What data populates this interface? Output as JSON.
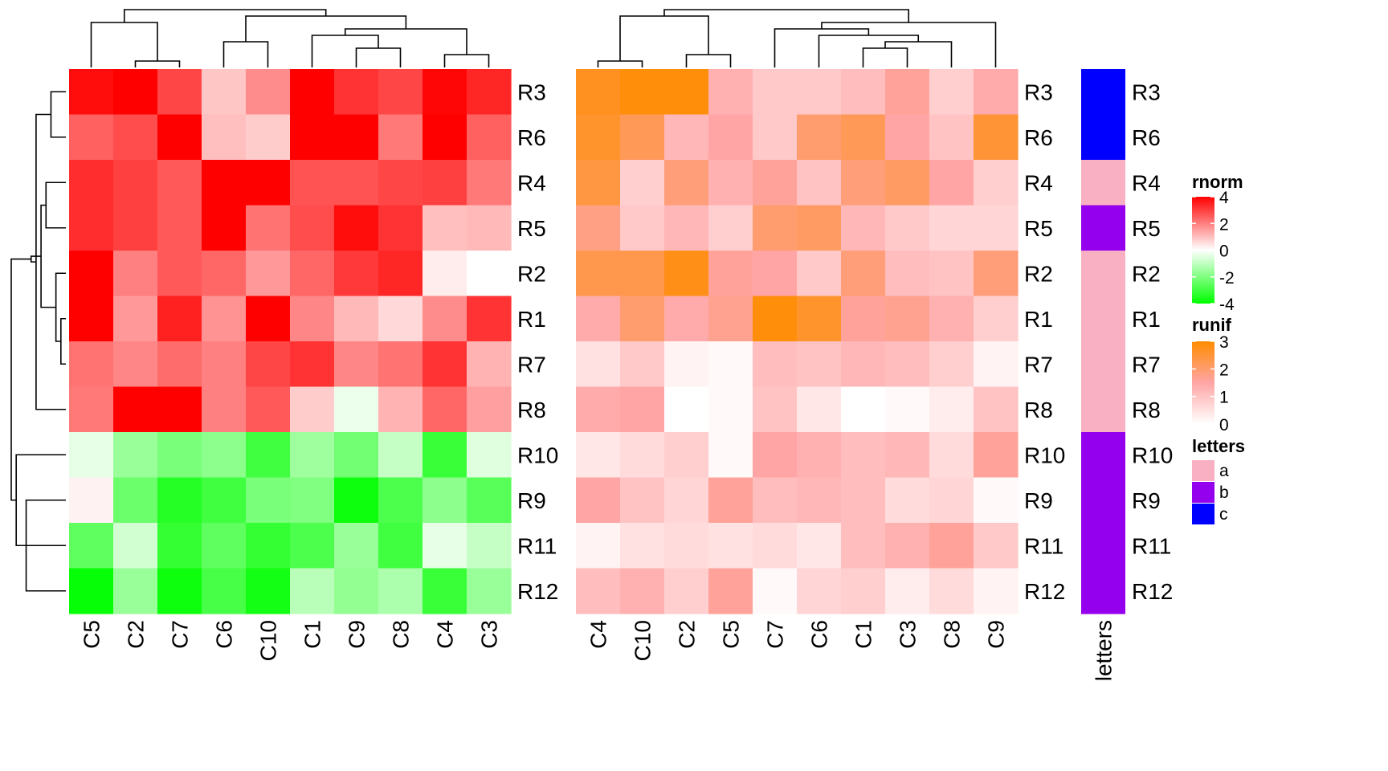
{
  "chart_data": [
    {
      "type": "heatmap",
      "name": "rnorm",
      "palette": [
        "#00ff00",
        "#ffffff",
        "#ff0000"
      ],
      "scale_range": [
        -4,
        4
      ],
      "rows": [
        "R3",
        "R6",
        "R4",
        "R5",
        "R2",
        "R1",
        "R7",
        "R8",
        "R10",
        "R9",
        "R11",
        "R12"
      ],
      "columns": [
        "C5",
        "C2",
        "C7",
        "C6",
        "C10",
        "C1",
        "C9",
        "C8",
        "C4",
        "C3"
      ],
      "values": [
        [
          3.8,
          4.0,
          2.9,
          0.9,
          1.8,
          4.0,
          3.2,
          2.9,
          3.9,
          3.4
        ],
        [
          2.5,
          2.8,
          4.0,
          1.0,
          0.8,
          4.0,
          4.0,
          2.1,
          4.0,
          2.5
        ],
        [
          3.3,
          3.0,
          2.6,
          4.0,
          4.0,
          2.7,
          2.7,
          2.9,
          3.0,
          2.1
        ],
        [
          3.3,
          3.0,
          2.6,
          4.0,
          2.2,
          2.8,
          3.8,
          3.2,
          1.0,
          1.1
        ],
        [
          4.0,
          2.0,
          2.6,
          2.4,
          1.6,
          2.4,
          3.1,
          3.4,
          0.3,
          0.0
        ],
        [
          4.0,
          1.6,
          3.5,
          1.7,
          4.0,
          1.9,
          1.1,
          0.6,
          1.8,
          3.2
        ],
        [
          2.2,
          1.9,
          2.3,
          2.0,
          2.9,
          3.2,
          1.9,
          2.2,
          3.2,
          1.2
        ],
        [
          2.1,
          4.0,
          4.0,
          2.0,
          2.6,
          0.8,
          -0.3,
          1.2,
          2.4,
          1.5
        ],
        [
          -0.4,
          -1.6,
          -2.1,
          -1.8,
          -3.0,
          -1.5,
          -2.2,
          -0.9,
          -3.1,
          -0.5
        ],
        [
          0.2,
          -2.3,
          -3.4,
          -3.0,
          -2.1,
          -2.0,
          -3.8,
          -2.8,
          -1.8,
          -2.6
        ],
        [
          -2.5,
          -0.7,
          -3.2,
          -2.5,
          -3.2,
          -2.8,
          -1.6,
          -3.0,
          -0.4,
          -0.9
        ],
        [
          -3.9,
          -1.6,
          -3.8,
          -2.9,
          -3.7,
          -1.1,
          -1.7,
          -1.3,
          -3.1,
          -1.6
        ]
      ],
      "row_dendrogram": [
        [
          "R1",
          "R7",
          1
        ],
        [
          "R2",
          0,
          2
        ],
        [
          "R3",
          "R6",
          3
        ],
        [
          "R4",
          "R5",
          4
        ],
        [
          3,
          1,
          5
        ],
        [
          "R8",
          2,
          6
        ],
        [
          4,
          5,
          7
        ],
        [
          "R12",
          "R9",
          8
        ],
        [
          "R11",
          7,
          9
        ],
        [
          "R10",
          8,
          10
        ],
        [
          6,
          9,
          11
        ]
      ],
      "column_dendrogram": [
        [
          "C2",
          "C7",
          1
        ],
        [
          "C4",
          "C3",
          2
        ],
        [
          "C9",
          "C8",
          3
        ],
        [
          "C6",
          "C10",
          4
        ],
        [
          "C1",
          2,
          5
        ],
        [
          4,
          1,
          6
        ],
        [
          "C5",
          0,
          7
        ],
        [
          5,
          3,
          8
        ],
        [
          6,
          7,
          9
        ]
      ]
    },
    {
      "type": "heatmap",
      "name": "runif",
      "palette": [
        "#ffffff",
        "#ffa5a5",
        "#ff8c00"
      ],
      "scale_range": [
        0,
        3
      ],
      "rows": [
        "R3",
        "R6",
        "R4",
        "R5",
        "R2",
        "R1",
        "R7",
        "R8",
        "R10",
        "R9",
        "R11",
        "R12"
      ],
      "columns": [
        "C4",
        "C10",
        "C2",
        "C5",
        "C7",
        "C6",
        "C1",
        "C3",
        "C8",
        "C9"
      ],
      "values": [
        [
          2.7,
          2.9,
          2.9,
          1.3,
          0.9,
          0.9,
          1.1,
          1.6,
          0.8,
          1.4
        ],
        [
          2.6,
          2.2,
          1.2,
          1.5,
          0.9,
          2.0,
          2.2,
          1.5,
          1.0,
          2.5
        ],
        [
          2.4,
          0.8,
          1.9,
          1.3,
          1.6,
          1.0,
          1.9,
          2.1,
          1.5,
          0.8
        ],
        [
          1.8,
          0.9,
          1.2,
          0.8,
          2.0,
          2.1,
          1.2,
          0.9,
          0.7,
          0.7
        ],
        [
          2.3,
          2.3,
          2.8,
          1.6,
          1.5,
          0.9,
          1.9,
          1.1,
          1.0,
          1.9
        ],
        [
          1.4,
          2.0,
          1.4,
          1.7,
          2.9,
          2.6,
          1.6,
          1.7,
          1.3,
          0.8
        ],
        [
          0.5,
          0.9,
          0.2,
          0.1,
          1.1,
          1.0,
          1.2,
          1.1,
          0.8,
          0.2
        ],
        [
          1.4,
          1.5,
          0.0,
          0.1,
          1.0,
          0.4,
          0.0,
          0.1,
          0.3,
          1.0
        ],
        [
          0.4,
          0.6,
          0.8,
          0.1,
          1.5,
          1.3,
          1.1,
          1.2,
          0.6,
          1.6
        ],
        [
          1.5,
          1.0,
          0.7,
          1.6,
          1.1,
          1.2,
          1.1,
          0.6,
          0.7,
          0.1
        ],
        [
          0.2,
          0.5,
          0.6,
          0.5,
          0.6,
          0.4,
          1.1,
          1.3,
          1.6,
          0.9
        ],
        [
          1.1,
          1.3,
          0.8,
          1.6,
          0.1,
          0.7,
          0.8,
          0.3,
          0.6,
          0.2
        ]
      ],
      "column_dendrogram": [
        [
          "C4",
          "C10",
          1
        ],
        [
          "C2",
          "C5",
          2
        ],
        [
          "C1",
          "C3",
          3
        ],
        [
          2,
          "C8",
          4
        ],
        [
          "C6",
          3,
          5
        ],
        [
          "C7",
          4,
          6
        ],
        [
          5,
          "C9",
          7
        ],
        [
          0,
          1,
          8
        ],
        [
          7,
          6,
          9
        ]
      ]
    },
    {
      "type": "categorical_annotation",
      "name": "letters",
      "rows": [
        "R3",
        "R6",
        "R4",
        "R5",
        "R2",
        "R1",
        "R7",
        "R8",
        "R10",
        "R9",
        "R11",
        "R12"
      ],
      "values": [
        "c",
        "c",
        "a",
        "b",
        "a",
        "a",
        "a",
        "a",
        "b",
        "b",
        "b",
        "b"
      ],
      "colors": {
        "a": "#f9b0c2",
        "b": "#9400ed",
        "c": "#0000ff"
      }
    }
  ],
  "legends": [
    {
      "title": "rnorm",
      "type": "continuous",
      "ticks": [
        "4",
        "2",
        "0",
        "-2",
        "-4"
      ],
      "stops": [
        "#ff0000",
        "#ffffff",
        "#00ff00"
      ]
    },
    {
      "title": "runif",
      "type": "continuous",
      "ticks": [
        "3",
        "2",
        "1",
        "0"
      ],
      "stops": [
        "#ff8c00",
        "#ffa5a5",
        "#ffffff"
      ]
    },
    {
      "title": "letters",
      "type": "discrete",
      "items": [
        {
          "label": "a",
          "color": "#f9b0c2"
        },
        {
          "label": "b",
          "color": "#9400ed"
        },
        {
          "label": "c",
          "color": "#0000ff"
        }
      ]
    }
  ]
}
